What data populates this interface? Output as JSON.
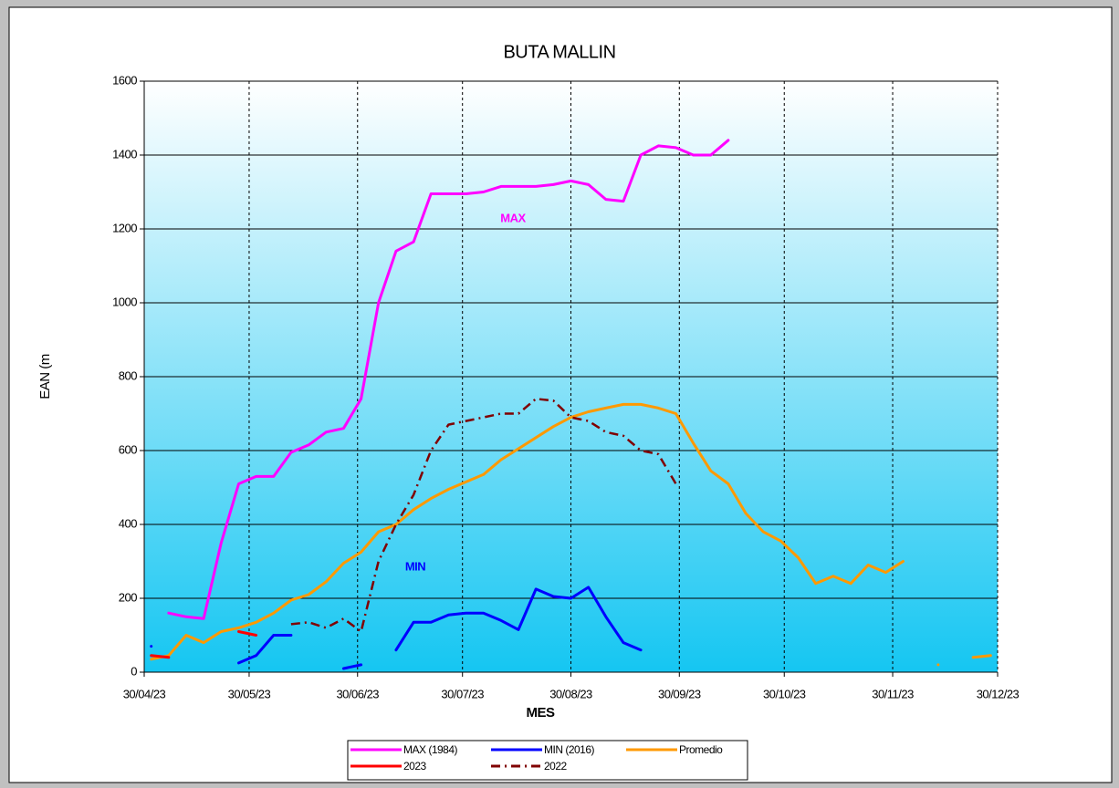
{
  "chart_data": {
    "type": "line",
    "title": "BUTA MALLIN",
    "x_label": "MES",
    "y_label": "EAN (m",
    "annotations": [
      "MAX",
      "MIN"
    ],
    "legend": "bottom",
    "grid": true,
    "xlim": [
      "2023-04-30",
      "2023-12-30"
    ],
    "xticks": [
      {
        "value": "2023-04-30",
        "label": "30/04/23"
      },
      {
        "value": "2023-05-30",
        "label": "30/05/23"
      },
      {
        "value": "2023-06-30",
        "label": "30/06/23"
      },
      {
        "value": "2023-07-30",
        "label": "30/07/23"
      },
      {
        "value": "2023-08-30",
        "label": "30/08/23"
      },
      {
        "value": "2023-09-30",
        "label": "30/09/23"
      },
      {
        "value": "2023-10-30",
        "label": "30/10/23"
      },
      {
        "value": "2023-11-30",
        "label": "30/11/23"
      },
      {
        "value": "2023-12-30",
        "label": "30/12/23"
      }
    ],
    "ylim": [
      0,
      1600
    ],
    "yticks": [
      0,
      200,
      400,
      600,
      800,
      1000,
      1200,
      1400,
      1600
    ],
    "x": [
      "2023-05-02",
      "2023-05-07",
      "2023-05-12",
      "2023-05-17",
      "2023-05-22",
      "2023-05-27",
      "2023-06-01",
      "2023-06-06",
      "2023-06-11",
      "2023-06-16",
      "2023-06-21",
      "2023-06-26",
      "2023-07-01",
      "2023-07-06",
      "2023-07-11",
      "2023-07-16",
      "2023-07-21",
      "2023-07-26",
      "2023-07-31",
      "2023-08-05",
      "2023-08-10",
      "2023-08-15",
      "2023-08-20",
      "2023-08-25",
      "2023-08-30",
      "2023-09-04",
      "2023-09-09",
      "2023-09-14",
      "2023-09-19",
      "2023-09-24",
      "2023-09-29",
      "2023-10-04",
      "2023-10-09",
      "2023-10-14",
      "2023-10-19",
      "2023-10-24",
      "2023-10-29",
      "2023-11-03",
      "2023-11-08",
      "2023-11-13",
      "2023-11-18",
      "2023-11-23",
      "2023-11-28",
      "2023-12-03",
      "2023-12-08",
      "2023-12-13",
      "2023-12-18",
      "2023-12-23",
      "2023-12-28"
    ],
    "series": [
      {
        "name": "MAX (1984)",
        "color": "#ff00ff",
        "dashed": false,
        "values": [
          null,
          160,
          150,
          145,
          350,
          510,
          530,
          530,
          595,
          615,
          650,
          660,
          740,
          1000,
          1140,
          1165,
          1295,
          1295,
          1295,
          1300,
          1315,
          1315,
          1315,
          1320,
          1330,
          1320,
          1280,
          1275,
          1400,
          1425,
          1420,
          1400,
          1400,
          1440,
          null,
          null,
          null,
          null,
          null,
          null,
          null,
          null,
          null,
          null,
          null,
          null,
          null,
          null,
          null
        ]
      },
      {
        "name": "MIN (2016)",
        "color": "#0000ff",
        "dashed": false,
        "values": [
          70,
          null,
          null,
          null,
          null,
          25,
          45,
          100,
          100,
          null,
          null,
          10,
          20,
          null,
          60,
          135,
          135,
          155,
          160,
          160,
          140,
          115,
          225,
          205,
          200,
          230,
          150,
          80,
          60,
          null,
          null,
          null,
          null,
          null,
          null,
          null,
          null,
          null,
          null,
          null,
          null,
          null,
          null,
          null,
          null,
          null,
          null,
          null,
          null
        ]
      },
      {
        "name": "Promedio",
        "color": "#ff9900",
        "dashed": false,
        "values": [
          35,
          45,
          100,
          80,
          110,
          120,
          135,
          160,
          195,
          210,
          245,
          295,
          325,
          380,
          400,
          440,
          470,
          495,
          515,
          535,
          575,
          605,
          635,
          665,
          690,
          705,
          715,
          725,
          725,
          715,
          700,
          620,
          545,
          510,
          430,
          380,
          355,
          310,
          240,
          260,
          240,
          290,
          270,
          300,
          null,
          20,
          null,
          40,
          45
        ]
      },
      {
        "name": "2023",
        "color": "#ff0000",
        "dashed": false,
        "values": [
          45,
          40,
          null,
          null,
          null,
          110,
          100,
          null,
          null,
          null,
          null,
          null,
          null,
          null,
          null,
          null,
          null,
          null,
          null,
          null,
          null,
          null,
          null,
          null,
          null,
          null,
          null,
          null,
          null,
          null,
          null,
          null,
          null,
          null,
          null,
          null,
          null,
          null,
          null,
          null,
          null,
          null,
          null,
          null,
          null,
          null,
          null,
          null,
          null
        ]
      },
      {
        "name": "2022",
        "color": "#800000",
        "dashed": true,
        "values": [
          null,
          null,
          null,
          null,
          null,
          null,
          null,
          null,
          130,
          135,
          120,
          145,
          110,
          300,
          400,
          480,
          600,
          670,
          680,
          690,
          700,
          700,
          740,
          735,
          690,
          680,
          650,
          640,
          600,
          590,
          510,
          null,
          null,
          null,
          null,
          null,
          null,
          null,
          null,
          null,
          null,
          null,
          null,
          null,
          null,
          null,
          null,
          null,
          null
        ]
      }
    ]
  }
}
